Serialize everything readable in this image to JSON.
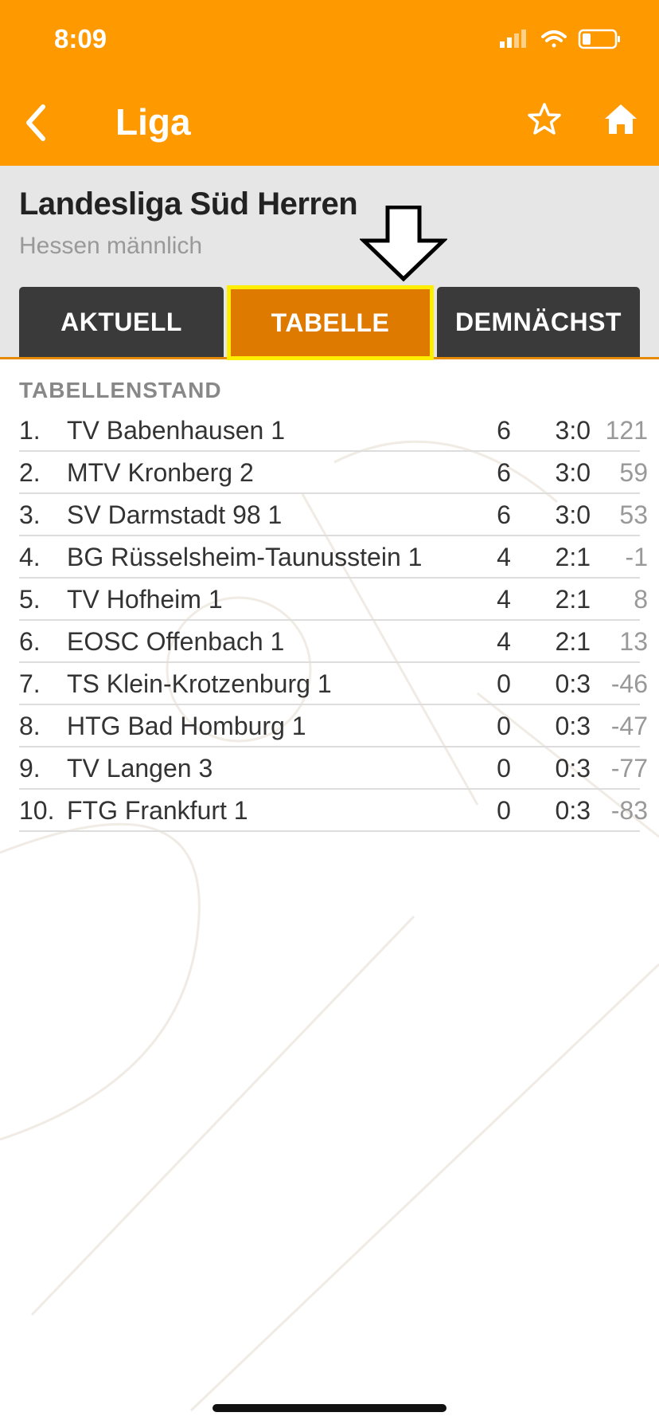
{
  "status": {
    "time": "8:09"
  },
  "nav": {
    "title": "Liga",
    "back_icon": "chevron-left-icon",
    "star_icon": "star-outline-icon",
    "home_icon": "home-icon"
  },
  "league": {
    "title": "Landesliga Süd Herren",
    "subtitle": "Hessen männlich"
  },
  "tabs": [
    {
      "label": "AKTUELL",
      "active": false
    },
    {
      "label": "TABELLE",
      "active": true
    },
    {
      "label": "DEMNÄCHST",
      "active": false
    }
  ],
  "section": {
    "label": "TABELLENSTAND"
  },
  "standings": [
    {
      "rank": "1.",
      "team": "TV Babenhausen 1",
      "games": "6",
      "score": "3:0",
      "diff": "121"
    },
    {
      "rank": "2.",
      "team": "MTV Kronberg 2",
      "games": "6",
      "score": "3:0",
      "diff": "59"
    },
    {
      "rank": "3.",
      "team": "SV Darmstadt 98 1",
      "games": "6",
      "score": "3:0",
      "diff": "53"
    },
    {
      "rank": "4.",
      "team": "BG Rüsselsheim-Taunusstein 1",
      "games": "4",
      "score": "2:1",
      "diff": "-1"
    },
    {
      "rank": "5.",
      "team": "TV Hofheim 1",
      "games": "4",
      "score": "2:1",
      "diff": "8"
    },
    {
      "rank": "6.",
      "team": "EOSC Offenbach 1",
      "games": "4",
      "score": "2:1",
      "diff": "13"
    },
    {
      "rank": "7.",
      "team": "TS Klein-Krotzenburg 1",
      "games": "0",
      "score": "0:3",
      "diff": "-46"
    },
    {
      "rank": "8.",
      "team": "HTG Bad Homburg 1",
      "games": "0",
      "score": "0:3",
      "diff": "-47"
    },
    {
      "rank": "9.",
      "team": "TV Langen 3",
      "games": "0",
      "score": "0:3",
      "diff": "-77"
    },
    {
      "rank": "10.",
      "team": "FTG Frankfurt 1",
      "games": "0",
      "score": "0:3",
      "diff": "-83"
    }
  ],
  "colors": {
    "accent": "#ff9900",
    "active_tab": "#df7a00",
    "highlight": "#ffee00",
    "tab_bg": "#3a3a3a"
  }
}
